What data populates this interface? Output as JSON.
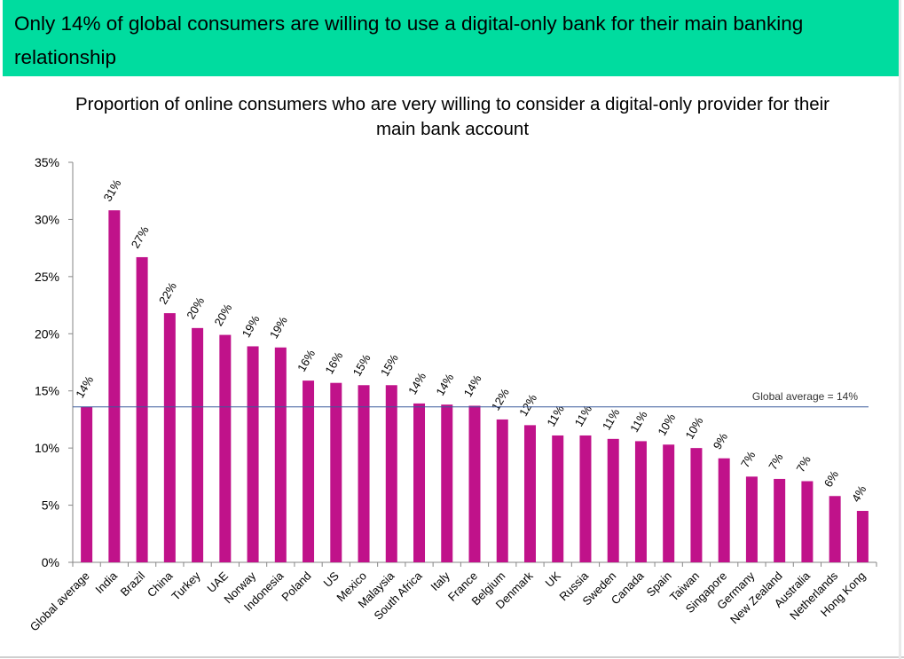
{
  "header": {
    "text": "Only 14% of global consumers are willing to use a digital-only bank for their main banking relationship"
  },
  "colors": {
    "header_bg": "#00dc9f",
    "bar": "#c0128a",
    "avg_line": "#3a5a9c",
    "axis": "#868686"
  },
  "chart_data": {
    "type": "bar",
    "title": "Proportion of online consumers who are very willing to consider a digital-only provider for their main bank account",
    "categories": [
      "Global average",
      "India",
      "Brazil",
      "China",
      "Turkey",
      "UAE",
      "Norway",
      "Indonesia",
      "Poland",
      "US",
      "Mexico",
      "Malaysia",
      "South Africa",
      "Italy",
      "France",
      "Belgium",
      "Denmark",
      "UK",
      "Russia",
      "Sweden",
      "Canada",
      "Spain",
      "Taiwan",
      "Singapore",
      "Germany",
      "New Zealand",
      "Australia",
      "Netherlands",
      "Hong Kong"
    ],
    "values": [
      13.6,
      30.8,
      26.7,
      21.8,
      20.5,
      19.9,
      18.9,
      18.8,
      15.9,
      15.7,
      15.5,
      15.5,
      13.9,
      13.8,
      13.7,
      12.5,
      12.0,
      11.1,
      11.1,
      10.8,
      10.6,
      10.3,
      10.0,
      9.1,
      7.5,
      7.3,
      7.1,
      5.8,
      4.5
    ],
    "labels": [
      "14%",
      "31%",
      "27%",
      "22%",
      "20%",
      "20%",
      "19%",
      "19%",
      "16%",
      "16%",
      "15%",
      "15%",
      "14%",
      "14%",
      "14%",
      "12%",
      "12%",
      "11%",
      "11%",
      "11%",
      "11%",
      "10%",
      "10%",
      "9%",
      "7%",
      "7%",
      "7%",
      "6%",
      "4%"
    ],
    "ylim": [
      0,
      35
    ],
    "yticks": [
      "0%",
      "5%",
      "10%",
      "15%",
      "20%",
      "25%",
      "30%",
      "35%"
    ],
    "reference_line": {
      "value": 13.6,
      "label": "Global average = 14%"
    },
    "grid": false,
    "legend": "none"
  }
}
